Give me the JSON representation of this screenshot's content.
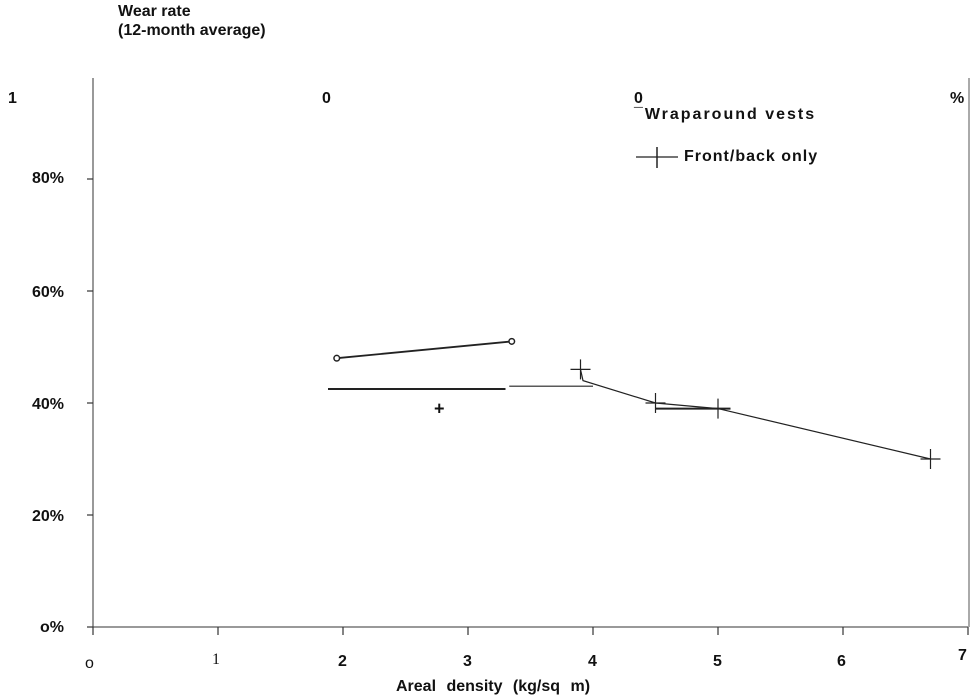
{
  "chart_data": {
    "type": "line",
    "ylabel_lines": [
      "Wear rate",
      "(12-month  average)"
    ],
    "xlabel": "Areal  density  (kg/sq  m)",
    "top_labels": [
      "1",
      "0",
      "0",
      "%"
    ],
    "x_ticks": [
      "o",
      "1",
      "2",
      "3",
      "4",
      "5",
      "6",
      "7"
    ],
    "y_ticks": [
      "o%",
      "20%",
      "40%",
      "60%",
      "80%"
    ],
    "xlim": [
      0,
      7
    ],
    "ylim": [
      0,
      100
    ],
    "series": [
      {
        "name": "Wraparound  vests",
        "marker": "dot",
        "points": [
          [
            1.95,
            48
          ],
          [
            3.35,
            51
          ]
        ]
      },
      {
        "name": "Front/back only",
        "marker": "plus",
        "points": [
          [
            3.9,
            46
          ],
          [
            3.92,
            44
          ],
          [
            4.5,
            40
          ],
          [
            5.0,
            39
          ],
          [
            6.7,
            30
          ]
        ]
      }
    ],
    "annotations": [
      {
        "type": "hline",
        "y": 42.5,
        "x0": 1.88,
        "x1": 3.3
      },
      {
        "type": "hline",
        "y": 43,
        "x0": 3.33,
        "x1": 4.0
      },
      {
        "type": "hline",
        "y": 39,
        "x0": 4.5,
        "x1": 5.1
      },
      {
        "type": "marker",
        "glyph": "+",
        "x": 2.77,
        "y": 39
      }
    ]
  }
}
